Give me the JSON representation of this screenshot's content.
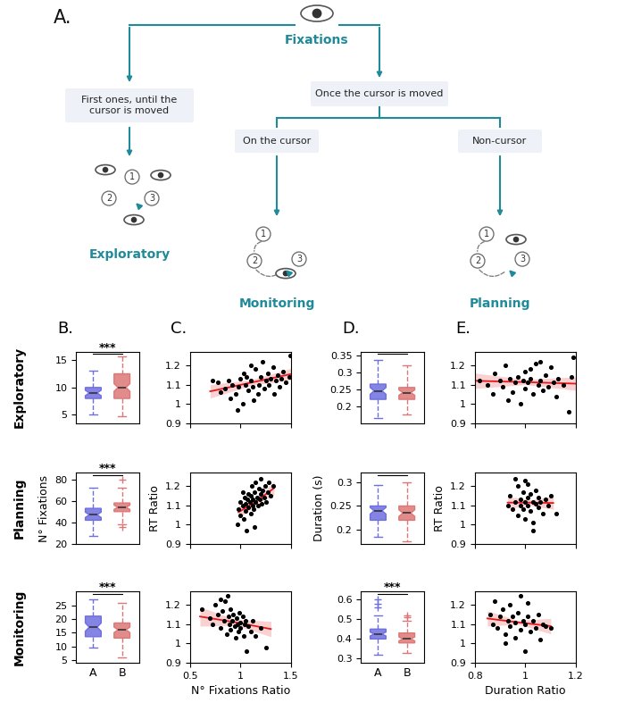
{
  "diagram": {
    "panel_label": "A.",
    "root": "Fixations",
    "branches": [
      {
        "label": "First ones, until the cursor is moved",
        "result": "Exploratory"
      },
      {
        "label": "Once the cursor is moved",
        "children": [
          {
            "label": "On the cursor",
            "result": "Monitoring"
          },
          {
            "label": "Non-cursor",
            "result": "Planning"
          }
        ]
      }
    ],
    "sequence_labels": [
      "1",
      "2",
      "3"
    ]
  },
  "panel_labels": [
    "B.",
    "C.",
    "D.",
    "E."
  ],
  "row_labels": [
    "Exploratory",
    "Planning",
    "Monitoring"
  ],
  "chart_data": [
    {
      "type": "box",
      "categories": [
        null,
        null
      ],
      "tick_labels": "y",
      "colors": [
        "#6e6ee0",
        "#dd7777"
      ],
      "ylim": [
        3.5,
        16.5
      ],
      "yticks": [
        5,
        10,
        15
      ],
      "significance": "***",
      "boxes": [
        {
          "whisker_low": 5,
          "q1": 8,
          "median": 9,
          "q3": 10,
          "whisker_high": 13,
          "notch_low": 8.5,
          "notch_high": 9.5,
          "outliers": []
        },
        {
          "whisker_low": 4.8,
          "q1": 8,
          "median": 10,
          "q3": 12.5,
          "whisker_high": 15.7,
          "notch_low": 9.3,
          "notch_high": 10.7,
          "outliers": []
        }
      ]
    },
    {
      "type": "scatter",
      "tick_labels": "y",
      "color": "#000000",
      "xlim": [
        0.5,
        1.5
      ],
      "xticks": [
        0.5,
        1,
        1.5
      ],
      "ylim": [
        0.9,
        1.27
      ],
      "yticks": [
        0.9,
        1,
        1.1,
        1.2
      ],
      "x": [
        0.72,
        0.78,
        0.8,
        0.85,
        0.88,
        0.9,
        0.92,
        0.95,
        0.97,
        0.98,
        1.0,
        1.02,
        1.03,
        1.05,
        1.06,
        1.08,
        1.1,
        1.1,
        1.12,
        1.15,
        1.17,
        1.18,
        1.2,
        1.22,
        1.23,
        1.25,
        1.27,
        1.28,
        1.3,
        1.32,
        1.33,
        1.35,
        1.37,
        1.38,
        1.4,
        1.42,
        1.45,
        1.48,
        1.49,
        1.13
      ],
      "y": [
        1.12,
        1.11,
        1.06,
        1.08,
        1.12,
        1.03,
        1.1,
        1.05,
        0.97,
        1.09,
        1.13,
        1.0,
        1.16,
        1.1,
        1.14,
        1.07,
        1.2,
        1.12,
        1.09,
        1.18,
        1.05,
        1.1,
        1.14,
        1.22,
        1.08,
        1.12,
        1.16,
        1.1,
        1.13,
        1.19,
        1.05,
        1.12,
        1.15,
        1.09,
        1.13,
        1.17,
        1.11,
        1.14,
        1.25,
        1.02
      ],
      "fit": {
        "color": "#e31a1c",
        "x": [
          0.7,
          1.1,
          1.5
        ],
        "y": [
          1.065,
          1.11,
          1.155
        ],
        "lower": [
          1.03,
          1.095,
          1.125
        ],
        "upper": [
          1.1,
          1.125,
          1.185
        ]
      }
    },
    {
      "type": "box",
      "categories": [
        null,
        null
      ],
      "tick_labels": "y",
      "colors": [
        "#6e6ee0",
        "#dd7777"
      ],
      "ylim": [
        0.15,
        0.36
      ],
      "yticks": [
        0.2,
        0.25,
        0.3,
        0.35
      ],
      "significance": null,
      "boxes": [
        {
          "whisker_low": 0.165,
          "q1": 0.22,
          "median": 0.245,
          "q3": 0.265,
          "whisker_high": 0.335,
          "notch_low": 0.235,
          "notch_high": 0.255,
          "outliers": []
        },
        {
          "whisker_low": 0.175,
          "q1": 0.22,
          "median": 0.24,
          "q3": 0.255,
          "whisker_high": 0.32,
          "notch_low": 0.232,
          "notch_high": 0.248,
          "outliers": []
        }
      ]
    },
    {
      "type": "scatter",
      "tick_labels": "y",
      "color": "#000000",
      "xlim": [
        0.8,
        1.2
      ],
      "xticks": [
        0.8,
        1,
        1.2
      ],
      "ylim": [
        0.9,
        1.27
      ],
      "yticks": [
        0.9,
        1,
        1.1,
        1.2
      ],
      "x": [
        0.82,
        0.85,
        0.87,
        0.88,
        0.9,
        0.91,
        0.92,
        0.94,
        0.95,
        0.96,
        0.97,
        0.98,
        0.99,
        1.0,
        1.0,
        1.01,
        1.02,
        1.03,
        1.04,
        1.05,
        1.06,
        1.07,
        1.08,
        1.09,
        1.1,
        1.11,
        1.12,
        1.13,
        1.15,
        1.17,
        1.18,
        1.19,
        1.06,
        0.93,
        1.02
      ],
      "y": [
        1.12,
        1.1,
        1.05,
        1.16,
        1.12,
        1.09,
        1.2,
        1.13,
        1.06,
        1.11,
        1.14,
        1.0,
        1.12,
        1.08,
        1.17,
        1.11,
        1.13,
        1.05,
        1.21,
        1.1,
        1.12,
        1.07,
        1.15,
        1.09,
        1.19,
        1.11,
        1.04,
        1.13,
        1.1,
        0.96,
        1.14,
        1.24,
        1.22,
        1.02,
        1.18
      ],
      "fit": {
        "color": "#e31a1c",
        "x": [
          0.8,
          1.0,
          1.2
        ],
        "y": [
          1.12,
          1.113,
          1.105
        ],
        "lower": [
          1.08,
          1.1,
          1.07
        ],
        "upper": [
          1.16,
          1.127,
          1.14
        ]
      }
    },
    {
      "type": "box",
      "categories": [
        null,
        null
      ],
      "tick_labels": "y",
      "colors": [
        "#6e6ee0",
        "#dd7777"
      ],
      "ylim": [
        20,
        86
      ],
      "yticks": [
        20,
        40,
        60,
        80
      ],
      "ylabel": "N° Fixations",
      "significance": "***",
      "boxes": [
        {
          "whisker_low": 27,
          "q1": 42,
          "median": 47,
          "q3": 53,
          "whisker_high": 72,
          "notch_low": 44.5,
          "notch_high": 49.5,
          "outliers": []
        },
        {
          "whisker_low": 38,
          "q1": 50,
          "median": 54,
          "q3": 58,
          "whisker_high": 72,
          "notch_low": 52,
          "notch_high": 56,
          "outliers": [
            80,
            36
          ]
        }
      ]
    },
    {
      "type": "scatter",
      "tick_labels": "y",
      "color": "#000000",
      "ylabel": "RT Ratio",
      "xlim": [
        0.5,
        1.5
      ],
      "xticks": [
        0.5,
        1,
        1.5
      ],
      "ylim": [
        0.9,
        1.27
      ],
      "yticks": [
        0.9,
        1,
        1.1,
        1.2
      ],
      "x": [
        0.97,
        0.98,
        1.0,
        1.0,
        1.02,
        1.03,
        1.04,
        1.05,
        1.05,
        1.06,
        1.07,
        1.08,
        1.08,
        1.09,
        1.1,
        1.1,
        1.11,
        1.12,
        1.12,
        1.13,
        1.14,
        1.15,
        1.15,
        1.16,
        1.17,
        1.18,
        1.19,
        1.2,
        1.2,
        1.21,
        1.22,
        1.23,
        1.24,
        1.25,
        1.27,
        1.28,
        1.3,
        1.32,
        1.02,
        1.14
      ],
      "y": [
        1.0,
        1.08,
        1.05,
        1.12,
        1.1,
        1.03,
        1.14,
        1.07,
        1.11,
        0.97,
        1.13,
        1.09,
        1.16,
        1.12,
        1.06,
        1.15,
        1.2,
        1.1,
        1.13,
        1.08,
        1.17,
        1.12,
        1.22,
        1.14,
        1.1,
        1.19,
        1.13,
        1.16,
        1.24,
        1.11,
        1.18,
        1.14,
        1.2,
        1.12,
        1.17,
        1.22,
        1.15,
        1.2,
        1.17,
        0.99
      ],
      "fit": {
        "color": "#e31a1c",
        "x": [
          0.98,
          1.15,
          1.33
        ],
        "y": [
          1.065,
          1.12,
          1.19
        ],
        "lower": [
          1.03,
          1.105,
          1.155
        ],
        "upper": [
          1.1,
          1.135,
          1.225
        ]
      }
    },
    {
      "type": "box",
      "categories": [
        null,
        null
      ],
      "tick_labels": "y",
      "colors": [
        "#6e6ee0",
        "#dd7777"
      ],
      "ylim": [
        0.17,
        0.32
      ],
      "yticks": [
        0.2,
        0.25,
        0.3
      ],
      "ylabel": "Duration (s)",
      "significance": null,
      "boxes": [
        {
          "whisker_low": 0.185,
          "q1": 0.22,
          "median": 0.24,
          "q3": 0.25,
          "whisker_high": 0.295,
          "notch_low": 0.233,
          "notch_high": 0.247,
          "outliers": []
        },
        {
          "whisker_low": 0.175,
          "q1": 0.22,
          "median": 0.235,
          "q3": 0.25,
          "whisker_high": 0.3,
          "notch_low": 0.228,
          "notch_high": 0.242,
          "outliers": []
        }
      ]
    },
    {
      "type": "scatter",
      "tick_labels": "y",
      "color": "#000000",
      "ylabel": "RT Ratio",
      "xlim": [
        0.8,
        1.2
      ],
      "xticks": [
        0.8,
        1,
        1.2
      ],
      "ylim": [
        0.9,
        1.27
      ],
      "yticks": [
        0.9,
        1,
        1.1,
        1.2
      ],
      "x": [
        0.93,
        0.94,
        0.95,
        0.96,
        0.97,
        0.97,
        0.98,
        0.98,
        0.99,
        0.99,
        1.0,
        1.0,
        1.0,
        1.01,
        1.01,
        1.02,
        1.02,
        1.03,
        1.03,
        1.04,
        1.04,
        1.05,
        1.05,
        1.06,
        1.07,
        1.08,
        1.09,
        1.1,
        1.12,
        0.96,
        1.01,
        1.03
      ],
      "y": [
        1.1,
        1.15,
        1.08,
        1.12,
        1.2,
        1.05,
        1.13,
        1.1,
        1.17,
        1.08,
        1.12,
        1.23,
        1.03,
        1.14,
        1.1,
        1.16,
        1.07,
        1.12,
        0.97,
        1.11,
        1.18,
        1.09,
        1.14,
        1.12,
        1.06,
        1.13,
        1.1,
        1.15,
        1.06,
        1.24,
        1.21,
        1.01
      ],
      "fit": {
        "color": "#e31a1c",
        "x": [
          0.93,
          1.02,
          1.11
        ],
        "y": [
          1.115,
          1.115,
          1.113
        ],
        "lower": [
          1.085,
          1.1,
          1.08
        ],
        "upper": [
          1.145,
          1.13,
          1.146
        ]
      }
    },
    {
      "type": "box",
      "categories": [
        "A",
        "B"
      ],
      "colors": [
        "#6e6ee0",
        "#dd7777"
      ],
      "ylim": [
        4,
        30
      ],
      "yticks": [
        5,
        10,
        15,
        20,
        25
      ],
      "significance": "***",
      "boxes": [
        {
          "whisker_low": 9.5,
          "q1": 13.5,
          "median": 17,
          "q3": 21,
          "whisker_high": 27,
          "notch_low": 15.5,
          "notch_high": 18.5,
          "outliers": []
        },
        {
          "whisker_low": 6,
          "q1": 13,
          "median": 16,
          "q3": 18.5,
          "whisker_high": 26,
          "notch_low": 15,
          "notch_high": 17,
          "outliers": []
        }
      ]
    },
    {
      "type": "scatter",
      "color": "#000000",
      "xlabel": "N° Fixations Ratio",
      "xlim": [
        0.5,
        1.5
      ],
      "xticks": [
        0.5,
        1,
        1.5
      ],
      "ylim": [
        0.9,
        1.27
      ],
      "yticks": [
        0.9,
        1,
        1.1,
        1.2
      ],
      "x": [
        0.62,
        0.7,
        0.72,
        0.75,
        0.78,
        0.8,
        0.82,
        0.84,
        0.85,
        0.86,
        0.88,
        0.89,
        0.9,
        0.9,
        0.92,
        0.93,
        0.94,
        0.95,
        0.96,
        0.97,
        0.98,
        0.99,
        1.0,
        1.0,
        1.02,
        1.03,
        1.04,
        1.05,
        1.06,
        1.08,
        1.1,
        1.12,
        1.15,
        1.2,
        1.25,
        0.87,
        0.8
      ],
      "y": [
        1.18,
        1.13,
        1.1,
        1.2,
        1.15,
        1.08,
        1.17,
        1.12,
        1.22,
        1.05,
        1.14,
        1.1,
        1.18,
        1.07,
        1.12,
        1.15,
        1.09,
        1.03,
        1.13,
        1.1,
        1.06,
        1.16,
        1.11,
        1.08,
        1.14,
        1.04,
        1.1,
        1.12,
        0.96,
        1.09,
        1.06,
        1.12,
        1.04,
        1.08,
        0.98,
        1.25,
        1.23
      ],
      "fit": {
        "color": "#e31a1c",
        "x": [
          0.6,
          0.95,
          1.3
        ],
        "y": [
          1.14,
          1.11,
          1.075
        ],
        "lower": [
          1.09,
          1.095,
          1.035
        ],
        "upper": [
          1.19,
          1.125,
          1.115
        ]
      }
    },
    {
      "type": "box",
      "categories": [
        "A",
        "B"
      ],
      "colors": [
        "#6e6ee0",
        "#dd7777"
      ],
      "ylim": [
        0.28,
        0.64
      ],
      "yticks": [
        0.3,
        0.4,
        0.5,
        0.6
      ],
      "significance": "***",
      "boxes": [
        {
          "whisker_low": 0.32,
          "q1": 0.4,
          "median": 0.425,
          "q3": 0.45,
          "whisker_high": 0.52,
          "notch_low": 0.415,
          "notch_high": 0.435,
          "outliers": [
            0.6,
            0.58,
            0.56
          ]
        },
        {
          "whisker_low": 0.33,
          "q1": 0.38,
          "median": 0.4,
          "q3": 0.43,
          "whisker_high": 0.49,
          "notch_low": 0.39,
          "notch_high": 0.41,
          "outliers": [
            0.52,
            0.51
          ]
        }
      ]
    },
    {
      "type": "scatter",
      "color": "#000000",
      "xlabel": "Duration Ratio",
      "xlim": [
        0.8,
        1.2
      ],
      "xticks": [
        0.8,
        1,
        1.2
      ],
      "ylim": [
        0.9,
        1.27
      ],
      "yticks": [
        0.9,
        1,
        1.1,
        1.2
      ],
      "x": [
        0.86,
        0.87,
        0.88,
        0.89,
        0.9,
        0.91,
        0.92,
        0.93,
        0.94,
        0.94,
        0.95,
        0.96,
        0.96,
        0.97,
        0.98,
        0.98,
        0.99,
        1.0,
        1.0,
        1.01,
        1.02,
        1.03,
        1.04,
        1.05,
        1.06,
        1.07,
        1.08,
        1.1,
        0.92,
        1.01
      ],
      "y": [
        1.15,
        1.1,
        1.22,
        1.08,
        1.14,
        1.18,
        1.05,
        1.12,
        1.2,
        1.09,
        1.14,
        1.03,
        1.11,
        1.16,
        1.07,
        1.25,
        1.12,
        1.1,
        0.96,
        1.14,
        1.06,
        1.12,
        1.08,
        1.15,
        1.02,
        1.1,
        1.09,
        1.08,
        1.0,
        1.21
      ],
      "fit": {
        "color": "#e31a1c",
        "x": [
          0.85,
          0.97,
          1.1
        ],
        "y": [
          1.13,
          1.11,
          1.09
        ],
        "lower": [
          1.09,
          1.1,
          1.05
        ],
        "upper": [
          1.17,
          1.12,
          1.13
        ]
      }
    }
  ]
}
